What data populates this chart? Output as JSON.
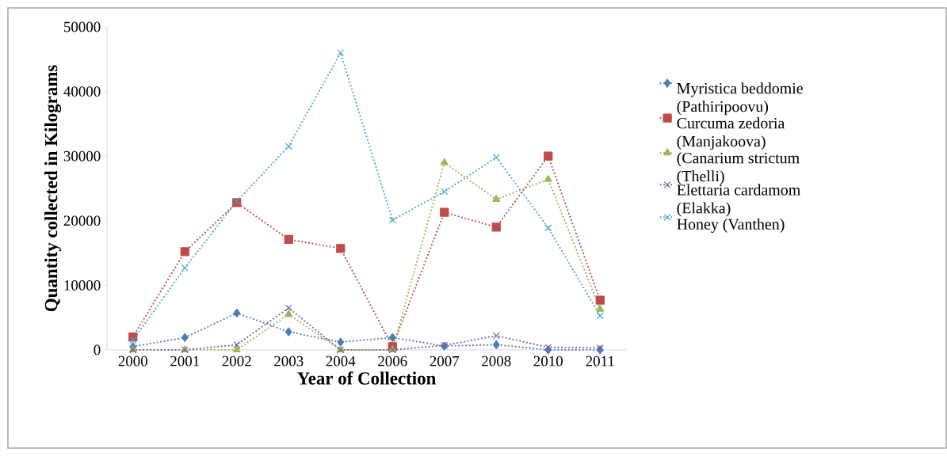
{
  "chart_data": {
    "type": "line",
    "xlabel": "Year of Collection",
    "ylabel": "Quantity collected in Kilograms",
    "categories": [
      "2000",
      "2001",
      "2002",
      "2003",
      "2004",
      "2006",
      "2007",
      "2008",
      "2010",
      "2011"
    ],
    "ylim": [
      0,
      50000
    ],
    "yticks": [
      0,
      10000,
      20000,
      30000,
      40000,
      50000
    ],
    "grid": false,
    "legend": "right",
    "line_style": "dotted",
    "series": [
      {
        "name": "Myristica beddomie (Pathiripoovu)",
        "color": "#4a7ebb",
        "marker": "diamond",
        "values": [
          500,
          1900,
          5700,
          2800,
          1200,
          1900,
          600,
          800,
          0,
          0
        ]
      },
      {
        "name": "Curcuma zedoria (Manjakoova)",
        "color": "#be4b48",
        "marker": "square",
        "values": [
          2000,
          15200,
          22800,
          17100,
          15700,
          500,
          21300,
          19000,
          30000,
          7700
        ]
      },
      {
        "name": "(Canarium strictum (Thelli)",
        "color": "#98b954",
        "marker": "triangle",
        "values": [
          0,
          0,
          0,
          5500,
          0,
          0,
          29000,
          23300,
          26400,
          6300
        ]
      },
      {
        "name": "Elettaria cardamom (Elakka)",
        "color": "#7d60a0",
        "marker": "cross",
        "values": [
          0,
          0,
          800,
          6500,
          0,
          0,
          700,
          2200,
          400,
          300
        ]
      },
      {
        "name": "Honey (Vanthen)",
        "color": "#46aac5",
        "marker": "cross",
        "values": [
          1500,
          12700,
          23000,
          31500,
          46000,
          20100,
          24500,
          29800,
          18900,
          5300
        ]
      }
    ]
  }
}
